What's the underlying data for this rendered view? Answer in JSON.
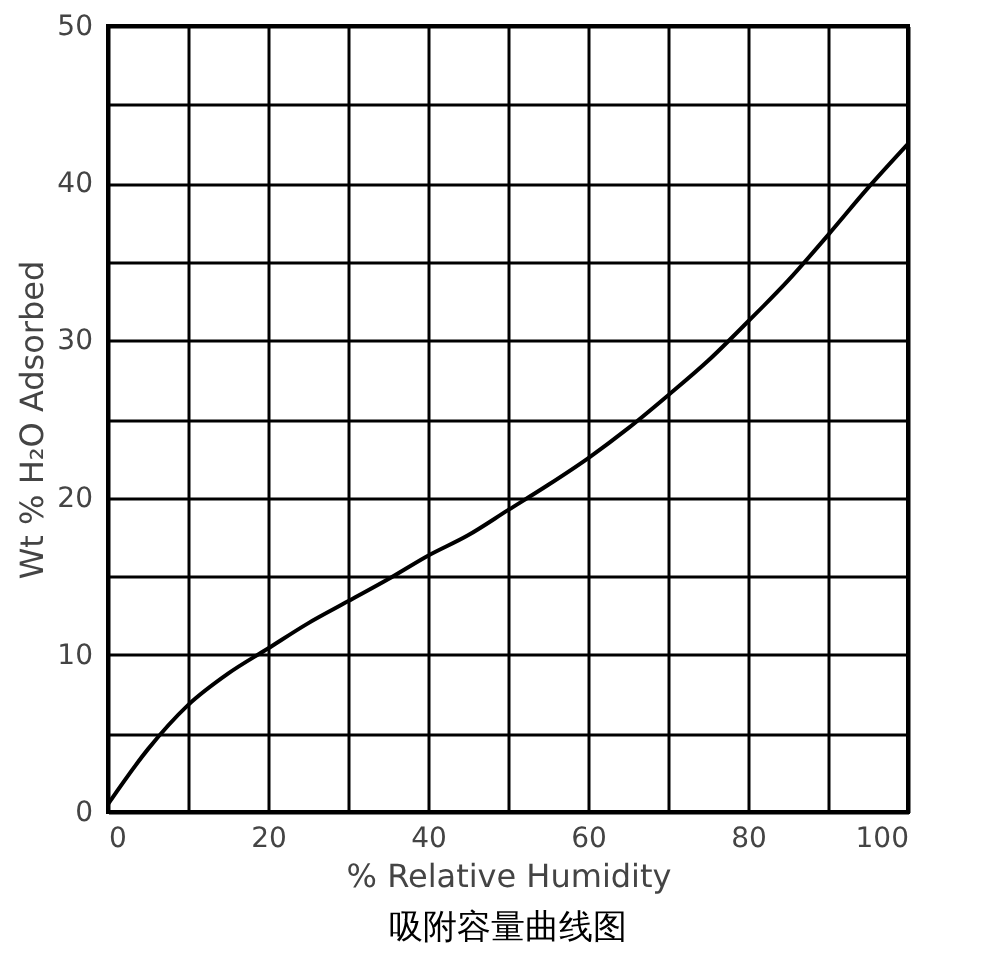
{
  "chart_data": {
    "type": "line",
    "title": "吸附容量曲线图",
    "xlabel": "% Relative Humidity",
    "ylabel": "Wt % H₂O Adsorbed",
    "x": [
      0,
      5,
      10,
      15,
      20,
      25,
      30,
      35,
      40,
      45,
      50,
      55,
      60,
      65,
      70,
      75,
      80,
      85,
      90,
      95,
      100
    ],
    "series": [
      {
        "color": "#000000",
        "values": [
          0.5,
          4,
          6.8,
          8.8,
          10.4,
          12,
          13.4,
          14.8,
          16.3,
          17.6,
          19.2,
          20.8,
          22.5,
          24.4,
          26.5,
          28.7,
          31.2,
          33.8,
          36.7,
          39.7,
          42.5
        ]
      }
    ],
    "xlim": [
      0,
      100
    ],
    "ylim": [
      0,
      50
    ],
    "xticks": [
      0,
      {
        "value": 10,
        "label": null
      },
      20,
      {
        "value": 30,
        "label": null
      },
      40,
      {
        "value": 50,
        "label": null
      },
      60,
      {
        "value": 70,
        "label": null
      },
      80,
      {
        "value": 90,
        "label": null
      },
      100
    ],
    "yticks": [
      0,
      {
        "value": 5,
        "label": null
      },
      10,
      {
        "value": 15,
        "label": null
      },
      20,
      {
        "value": 25,
        "label": null
      },
      30,
      {
        "value": 35,
        "label": null
      },
      40,
      {
        "value": 45,
        "label": null
      },
      50
    ],
    "grid": true,
    "marker": "none",
    "line_style": "solid"
  }
}
